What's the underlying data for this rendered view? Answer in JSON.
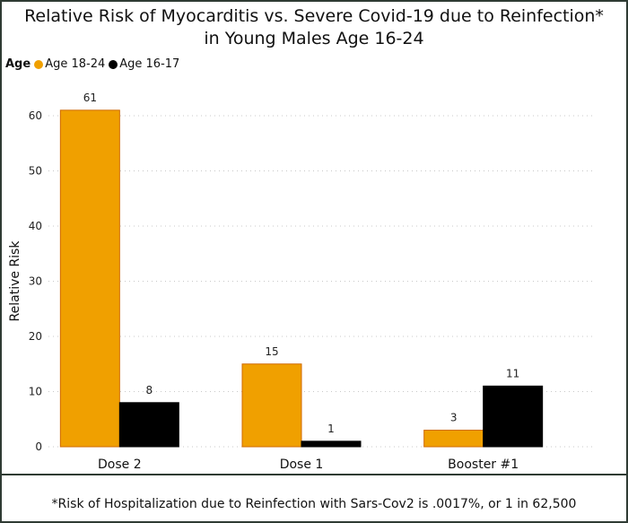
{
  "footnote": "*Risk of Hospitalization due to Reinfection with Sars-Cov2 is .0017%, or 1 in 62,500",
  "chart_data": {
    "type": "bar",
    "title_lines": [
      "Relative Risk of Myocarditis vs. Severe Covid-19 due to Reinfection*",
      "in Young Males Age 16-24"
    ],
    "legend_title": "Age",
    "legend_position": "top-left",
    "categories": [
      "Dose 2",
      "Dose 1",
      "Booster #1"
    ],
    "series": [
      {
        "name": "Age 18-24",
        "color": "#f0a000",
        "values": [
          61,
          15,
          3
        ]
      },
      {
        "name": "Age 16-17",
        "color": "#000000",
        "values": [
          8,
          1,
          11
        ]
      }
    ],
    "ylabel": "Relative Risk",
    "xlabel": "",
    "ylim": [
      0,
      60
    ],
    "yticks": [
      0,
      10,
      20,
      30,
      40,
      50,
      60
    ],
    "grid": true
  }
}
